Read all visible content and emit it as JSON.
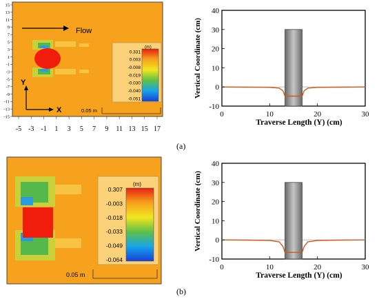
{
  "panel_labels": [
    "(a)",
    "(b)"
  ],
  "heatmaps": [
    {
      "x_ticks": [
        "-5",
        "-3",
        "-1",
        "1",
        "3",
        "5",
        "7",
        "9",
        "11",
        "13",
        "15",
        "17"
      ],
      "y_ticks": [
        "15",
        "13",
        "11",
        "9",
        "7",
        "5",
        "3",
        "1",
        "-1",
        "-3",
        "-5",
        "-7",
        "-9",
        "-11",
        "-13",
        "-15"
      ],
      "flow_label": "Flow",
      "x_axis_letter": "X",
      "y_axis_letter": "Y",
      "scale_label": "0.05 m",
      "colorbar": {
        "unit": "(m)",
        "ticks": [
          "0.331",
          "0.003",
          "-0.008",
          "-0.019",
          "-0.030",
          "-0.040",
          "-0.051"
        ]
      },
      "colors": {
        "background": "#f7a21c",
        "pier": "#f01c0c"
      }
    },
    {
      "scale_label": "0.05 m",
      "colorbar": {
        "unit": "(m)",
        "ticks": [
          "0.307",
          "-0.003",
          "-0.018",
          "-0.033",
          "-0.049",
          "-0.064"
        ]
      },
      "colors": {
        "background": "#f7a21c",
        "pier": "#f01c0c"
      }
    }
  ],
  "chart_data": [
    {
      "type": "line",
      "xlabel": "Traverse Length (Y) (cm)",
      "ylabel": "Vertical Coordinate (cm)",
      "xlim": [
        0,
        30
      ],
      "ylim": [
        -10,
        40
      ],
      "x_ticks": [
        "0",
        "10",
        "20",
        "30"
      ],
      "y_ticks": [
        "40",
        "30",
        "20",
        "10",
        "0",
        "-10"
      ],
      "pier": {
        "x_start": 13.2,
        "x_end": 16.8,
        "top": 30
      },
      "series": [
        {
          "color": "#d15a16",
          "points": [
            [
              0,
              0
            ],
            [
              5,
              -0.1
            ],
            [
              10,
              -0.2
            ],
            [
              12,
              -0.6
            ],
            [
              12.8,
              -2.0
            ],
            [
              13.2,
              -4.8
            ],
            [
              16.8,
              -4.8
            ],
            [
              17.2,
              -2.0
            ],
            [
              18,
              -0.6
            ],
            [
              20,
              -0.2
            ],
            [
              25,
              -0.1
            ],
            [
              30,
              0
            ]
          ]
        }
      ]
    },
    {
      "type": "line",
      "xlabel": "Traverse Length (Y) (cm)",
      "ylabel": "Vertical Coordinate (cm)",
      "xlim": [
        0,
        30
      ],
      "ylim": [
        -10,
        40
      ],
      "x_ticks": [
        "0",
        "10",
        "20",
        "30"
      ],
      "y_ticks": [
        "40",
        "30",
        "20",
        "10",
        "0",
        "-10"
      ],
      "pier": {
        "x_start": 13.2,
        "x_end": 16.8,
        "top": 30
      },
      "series": [
        {
          "color": "#d15a16",
          "points": [
            [
              0,
              0
            ],
            [
              5,
              -0.1
            ],
            [
              10,
              -0.3
            ],
            [
              12,
              -1.0
            ],
            [
              12.8,
              -3.5
            ],
            [
              13.2,
              -6.5
            ],
            [
              16.8,
              -6.5
            ],
            [
              17.2,
              -3.5
            ],
            [
              18,
              -1.0
            ],
            [
              20,
              -0.3
            ],
            [
              25,
              -0.1
            ],
            [
              30,
              0
            ]
          ]
        }
      ]
    }
  ]
}
